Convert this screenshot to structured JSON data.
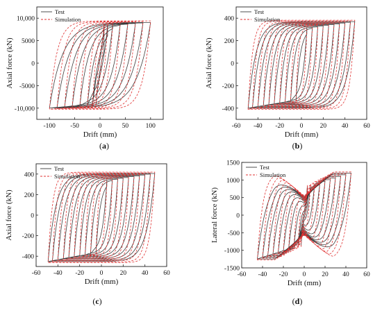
{
  "colors": {
    "test": "#3a3a3a",
    "simulation": "#e03030",
    "frame": "#222222"
  },
  "chart_data": [
    {
      "id": "a",
      "type": "line",
      "caption": "(a)",
      "xlabel": "Drift (mm)",
      "ylabel": "Axial force (kN)",
      "xlim": [
        -125,
        125
      ],
      "ylim": [
        -12500,
        12500
      ],
      "xticks": [
        -100,
        -50,
        0,
        50,
        100
      ],
      "yticks": [
        -10000,
        -5000,
        0,
        5000,
        10000
      ],
      "ytick_labels": [
        "-10,000",
        "-5000",
        "0",
        "5000",
        "10,000"
      ],
      "legend": [
        "Test",
        "Simulation"
      ],
      "legend_position": "top-left",
      "hysteresis": {
        "amplitudes": [
          8,
          15,
          25,
          40,
          55,
          70,
          85,
          100
        ],
        "f_pos": 8400,
        "f_neg": -9200,
        "hard_pos": 6,
        "hard_neg": 7,
        "sharp": 22
      }
    },
    {
      "id": "b",
      "type": "line",
      "caption": "(b)",
      "xlabel": "Drift (mm)",
      "ylabel": "Axial force (kN)",
      "xlim": [
        -60,
        60
      ],
      "ylim": [
        -500,
        500
      ],
      "xticks": [
        -60,
        -40,
        -20,
        0,
        20,
        40,
        60
      ],
      "yticks": [
        -400,
        -200,
        0,
        200,
        400
      ],
      "ytick_labels": [
        "-400",
        "-200",
        "0",
        "200",
        "400"
      ],
      "legend": [
        "Test",
        "Simulation"
      ],
      "legend_position": "top-left",
      "hysteresis": {
        "amplitudes": [
          5,
          10,
          15,
          20,
          25,
          30,
          35,
          40,
          45,
          49
        ],
        "f_pos": 305,
        "f_neg": -325,
        "hard_pos": 1.2,
        "hard_neg": 1.4,
        "sharp": 6
      }
    },
    {
      "id": "c",
      "type": "line",
      "caption": "(c)",
      "xlabel": "Drift (mm)",
      "ylabel": "Axial force (kN)",
      "xlim": [
        -60,
        60
      ],
      "ylim": [
        -500,
        500
      ],
      "xticks": [
        -60,
        -40,
        -20,
        0,
        20,
        40,
        60
      ],
      "yticks": [
        -400,
        -200,
        0,
        200,
        400
      ],
      "ytick_labels": [
        "-400",
        "-200",
        "0",
        "200",
        "400"
      ],
      "legend": [
        "Test",
        "Simulation"
      ],
      "legend_position": "top-left",
      "hysteresis": {
        "amplitudes": [
          5,
          10,
          15,
          20,
          25,
          30,
          35,
          40,
          45,
          49
        ],
        "f_pos": 330,
        "f_neg": -360,
        "hard_pos": 1.4,
        "hard_neg": 1.7,
        "sharp": 6
      }
    },
    {
      "id": "d",
      "type": "line",
      "caption": "(d)",
      "xlabel": "Drift (mm)",
      "ylabel": "Lateral force (kN)",
      "xlim": [
        -60,
        60
      ],
      "ylim": [
        -1500,
        1500
      ],
      "xticks": [
        -60,
        -40,
        -20,
        0,
        20,
        40,
        60
      ],
      "yticks": [
        -1500,
        -1000,
        -500,
        0,
        500,
        1000,
        1500
      ],
      "ytick_labels": [
        "-1500",
        "-1000",
        "-500",
        "0",
        "500",
        "1000",
        "1500"
      ],
      "legend": [
        "Test",
        "Simulation"
      ],
      "legend_position": "top-left",
      "hysteresis": {
        "amplitudes": [
          3,
          6,
          10,
          15,
          20,
          25,
          30,
          35,
          40,
          45
        ],
        "f_pos": 800,
        "f_neg": -850,
        "hard_pos": 8,
        "hard_neg": 8,
        "sharp": 8,
        "pinch": true
      }
    }
  ]
}
